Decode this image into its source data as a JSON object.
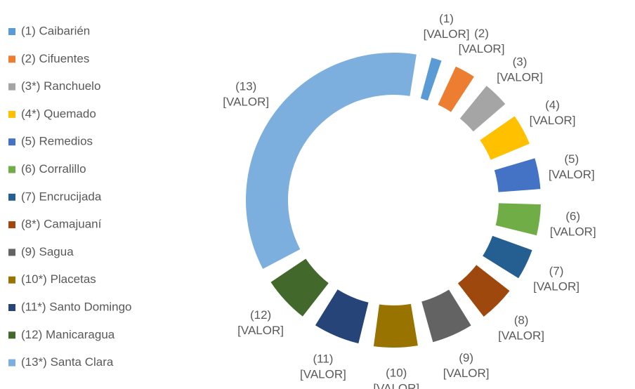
{
  "chart_data": {
    "type": "donut",
    "categories": [
      "(1) Caibarién",
      "(2) Cifuentes",
      "(3*) Ranchuelo",
      "(4*) Quemado",
      "(5) Remedios",
      "(6) Corralillo",
      "(7) Encrucijada",
      "(8*) Camajuaní",
      "(9) Sagua",
      "(10*) Placetas",
      "(11*) Santo Domingo",
      "(12) Manicaragua",
      "(13*) Santa Clara"
    ],
    "values": [
      4,
      8,
      10,
      12,
      12,
      12,
      12,
      14,
      16,
      17,
      18,
      18,
      125
    ],
    "value_labels": [
      [
        "(1)",
        "[VALOR]"
      ],
      [
        "(2)",
        "[VALOR]"
      ],
      [
        "(3)",
        "[VALOR]"
      ],
      [
        "(4)",
        "[VALOR]"
      ],
      [
        "(5)",
        "[VALOR]"
      ],
      [
        "(6)",
        "[VALOR]"
      ],
      [
        "(7)",
        "[VALOR]"
      ],
      [
        "(8)",
        "[VALOR]"
      ],
      [
        "(9)",
        "[VALOR]"
      ],
      [
        "(10)",
        "[VALOR]"
      ],
      [
        "(11)",
        "[VALOR]"
      ],
      [
        "(12)",
        "[VALOR]"
      ],
      [
        "(13)",
        "[VALOR]"
      ]
    ],
    "colors": [
      "#5b9bd5",
      "#ed7d31",
      "#a5a5a5",
      "#ffc000",
      "#4472c4",
      "#70ad47",
      "#255e91",
      "#9e480e",
      "#636363",
      "#997300",
      "#264478",
      "#43682b",
      "#7cafdd"
    ],
    "legend": "left"
  }
}
